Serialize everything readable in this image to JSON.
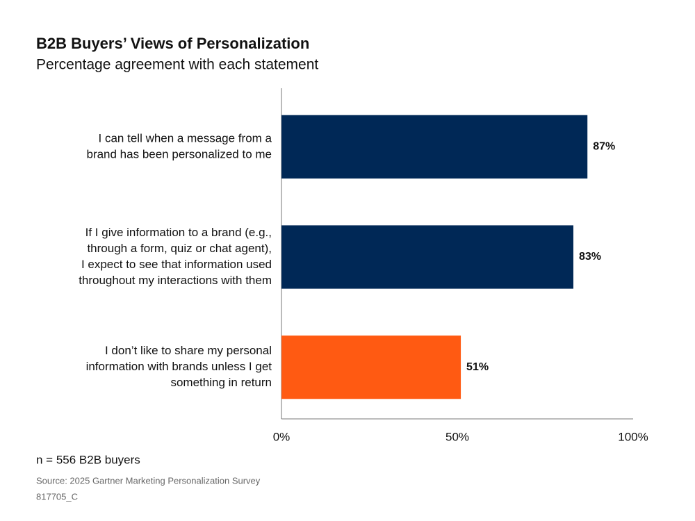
{
  "chart_data": {
    "type": "bar",
    "orientation": "horizontal",
    "title": "B2B Buyers’ Views of Personalization",
    "subtitle": "Percentage agreement with each statement",
    "categories": [
      [
        "I can tell when a message from a",
        "brand has been personalized to me"
      ],
      [
        "If I give information to a brand (e.g.,",
        "through a form, quiz or chat agent),",
        "I expect to see that information used",
        "throughout my interactions with them"
      ],
      [
        "I don’t like to share my personal",
        "information with brands unless I get",
        "something in return"
      ]
    ],
    "values": [
      87,
      83,
      51
    ],
    "value_labels": [
      "87%",
      "83%",
      "51%"
    ],
    "colors": [
      "#002856",
      "#002856",
      "#ff5a12"
    ],
    "xlim": [
      0,
      100
    ],
    "xticks": [
      {
        "value": 0,
        "label": "0%"
      },
      {
        "value": 50,
        "label": "50%"
      },
      {
        "value": 100,
        "label": "100%"
      }
    ],
    "note": "n = 556 B2B buyers",
    "source": "Source: 2025 Gartner Marketing Personalization Survey",
    "id": "817705_C"
  }
}
